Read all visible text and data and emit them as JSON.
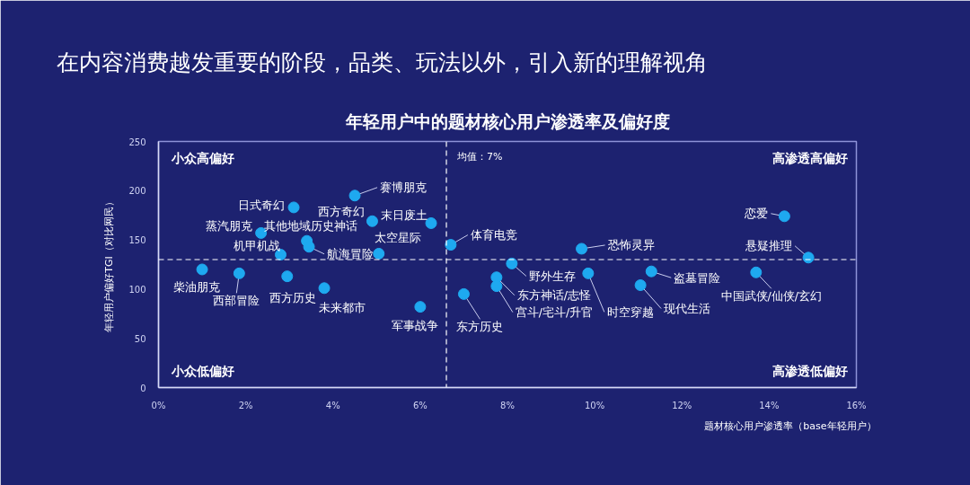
{
  "chart_data": {
    "type": "scatter",
    "title": "在内容消费越发重要的阶段，品类、玩法以外，引入新的理解视角",
    "subtitle": "年轻用户中的题材核心用户渗透率及偏好度",
    "xlabel": "题材核心用户渗透率（base年轻用户）",
    "ylabel": "年轻用户偏好TGI（对比网民）",
    "x": [
      1.0,
      1.85,
      2.35,
      2.8,
      2.95,
      3.1,
      3.4,
      3.45,
      3.8,
      4.5,
      4.9,
      5.05,
      6.0,
      6.25,
      6.7,
      7.0,
      7.75,
      7.75,
      8.1,
      9.7,
      9.85,
      11.05,
      11.3,
      13.7,
      14.35,
      14.9
    ],
    "values": [
      120,
      116,
      157,
      135,
      113,
      183,
      149,
      143,
      101,
      195,
      169,
      136,
      82,
      167,
      145,
      95,
      112,
      103,
      126,
      141,
      116,
      104,
      118,
      117,
      174,
      132
    ],
    "color": "#1ea9f0",
    "marker": "circle",
    "xlim": [
      0,
      16
    ],
    "ylim": [
      0,
      250
    ],
    "xticks": [
      {
        "value": 0,
        "label": "0%"
      },
      {
        "value": 2,
        "label": "2%"
      },
      {
        "value": 4,
        "label": "4%"
      },
      {
        "value": 6,
        "label": "6%"
      },
      {
        "value": 8,
        "label": "8%"
      },
      {
        "value": 10,
        "label": "10%"
      },
      {
        "value": 12,
        "label": "12%"
      },
      {
        "value": 14,
        "label": "14%"
      },
      {
        "value": 16,
        "label": "16%"
      }
    ],
    "yticks": [
      0,
      50,
      100,
      150,
      200,
      250
    ],
    "ref_lines": [
      {
        "axis": "x",
        "value": 6.6,
        "label": "均值：7%",
        "color": "#ffffff",
        "line_style": "dashed"
      },
      {
        "axis": "y",
        "value": 130,
        "color": "#ffffff",
        "line_style": "dashed"
      }
    ],
    "annotations": [
      "小众高偏好",
      "高渗透高偏好",
      "小众低偏好",
      "高渗透低偏好",
      {
        "text": "柴油朋克",
        "x": 1.0,
        "y": 120
      },
      {
        "text": "西部冒险",
        "x": 1.85,
        "y": 116
      },
      {
        "text": "蒸汽朋克",
        "x": 2.35,
        "y": 157
      },
      {
        "text": "机甲机战",
        "x": 2.8,
        "y": 135
      },
      {
        "text": "西方历史",
        "x": 2.95,
        "y": 113
      },
      {
        "text": "日式奇幻",
        "x": 3.1,
        "y": 183
      },
      {
        "text": "其他地域历史神话",
        "x": 3.4,
        "y": 149
      },
      {
        "text": "航海冒险",
        "x": 3.45,
        "y": 143
      },
      {
        "text": "未来都市",
        "x": 3.8,
        "y": 101
      },
      {
        "text": "赛博朋克",
        "x": 4.5,
        "y": 195
      },
      {
        "text": "西方奇幻",
        "x": 4.9,
        "y": 169
      },
      {
        "text": "太空星际",
        "x": 5.05,
        "y": 136
      },
      {
        "text": "军事战争",
        "x": 6.0,
        "y": 82
      },
      {
        "text": "末日废土",
        "x": 6.25,
        "y": 167
      },
      {
        "text": "体育电竞",
        "x": 6.7,
        "y": 145
      },
      {
        "text": "东方历史",
        "x": 7.0,
        "y": 95
      },
      {
        "text": "东方神话/志怪",
        "x": 7.75,
        "y": 112
      },
      {
        "text": "宫斗/宅斗/升官",
        "x": 7.75,
        "y": 103
      },
      {
        "text": "野外生存",
        "x": 8.1,
        "y": 126
      },
      {
        "text": "恐怖灵异",
        "x": 9.7,
        "y": 141
      },
      {
        "text": "时空穿越",
        "x": 9.85,
        "y": 116
      },
      {
        "text": "现代生活",
        "x": 11.05,
        "y": 104
      },
      {
        "text": "盗墓冒险",
        "x": 11.3,
        "y": 118
      },
      {
        "text": "中国武侠/仙侠/玄幻",
        "x": 13.7,
        "y": 117
      },
      {
        "text": "恋爱",
        "x": 14.35,
        "y": 174
      },
      {
        "text": "悬疑推理",
        "x": 14.9,
        "y": 132
      }
    ]
  }
}
